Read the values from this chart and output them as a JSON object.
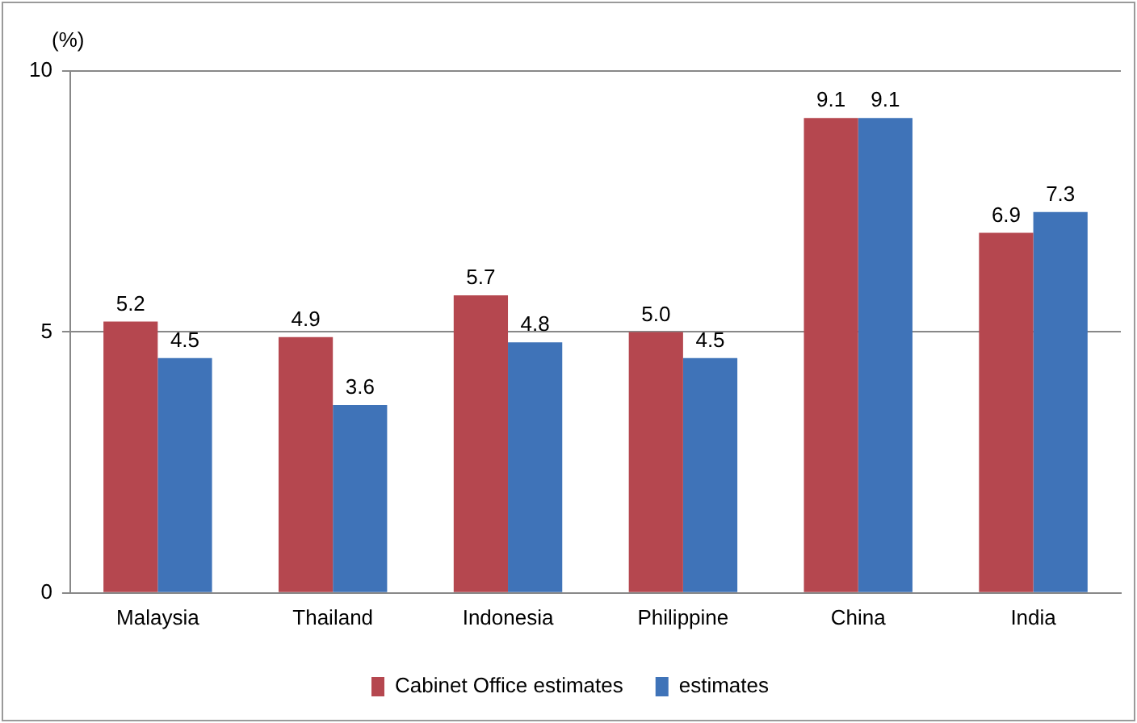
{
  "chart_data": {
    "type": "bar",
    "ylabel": "(%)",
    "categories": [
      "Malaysia",
      "Thailand",
      "Indonesia",
      "Philippine",
      "China",
      "India"
    ],
    "series": [
      {
        "name": "Cabinet Office estimates",
        "color": "#b5474f",
        "values": [
          5.2,
          4.9,
          5.7,
          5.0,
          9.1,
          6.9
        ],
        "value_labels": [
          "5.2",
          "4.9",
          "5.7",
          "5.0",
          "9.1",
          "6.9"
        ]
      },
      {
        "name": "estimates",
        "color": "#3f73b8",
        "values": [
          4.5,
          3.6,
          4.8,
          4.5,
          9.1,
          7.3
        ],
        "value_labels": [
          "4.5",
          "3.6",
          "4.8",
          "4.5",
          "9.1",
          "7.3"
        ]
      }
    ],
    "ylim": [
      0,
      10
    ],
    "yticks": [
      0,
      5,
      10
    ],
    "grid": "y",
    "legend": "bottom"
  }
}
